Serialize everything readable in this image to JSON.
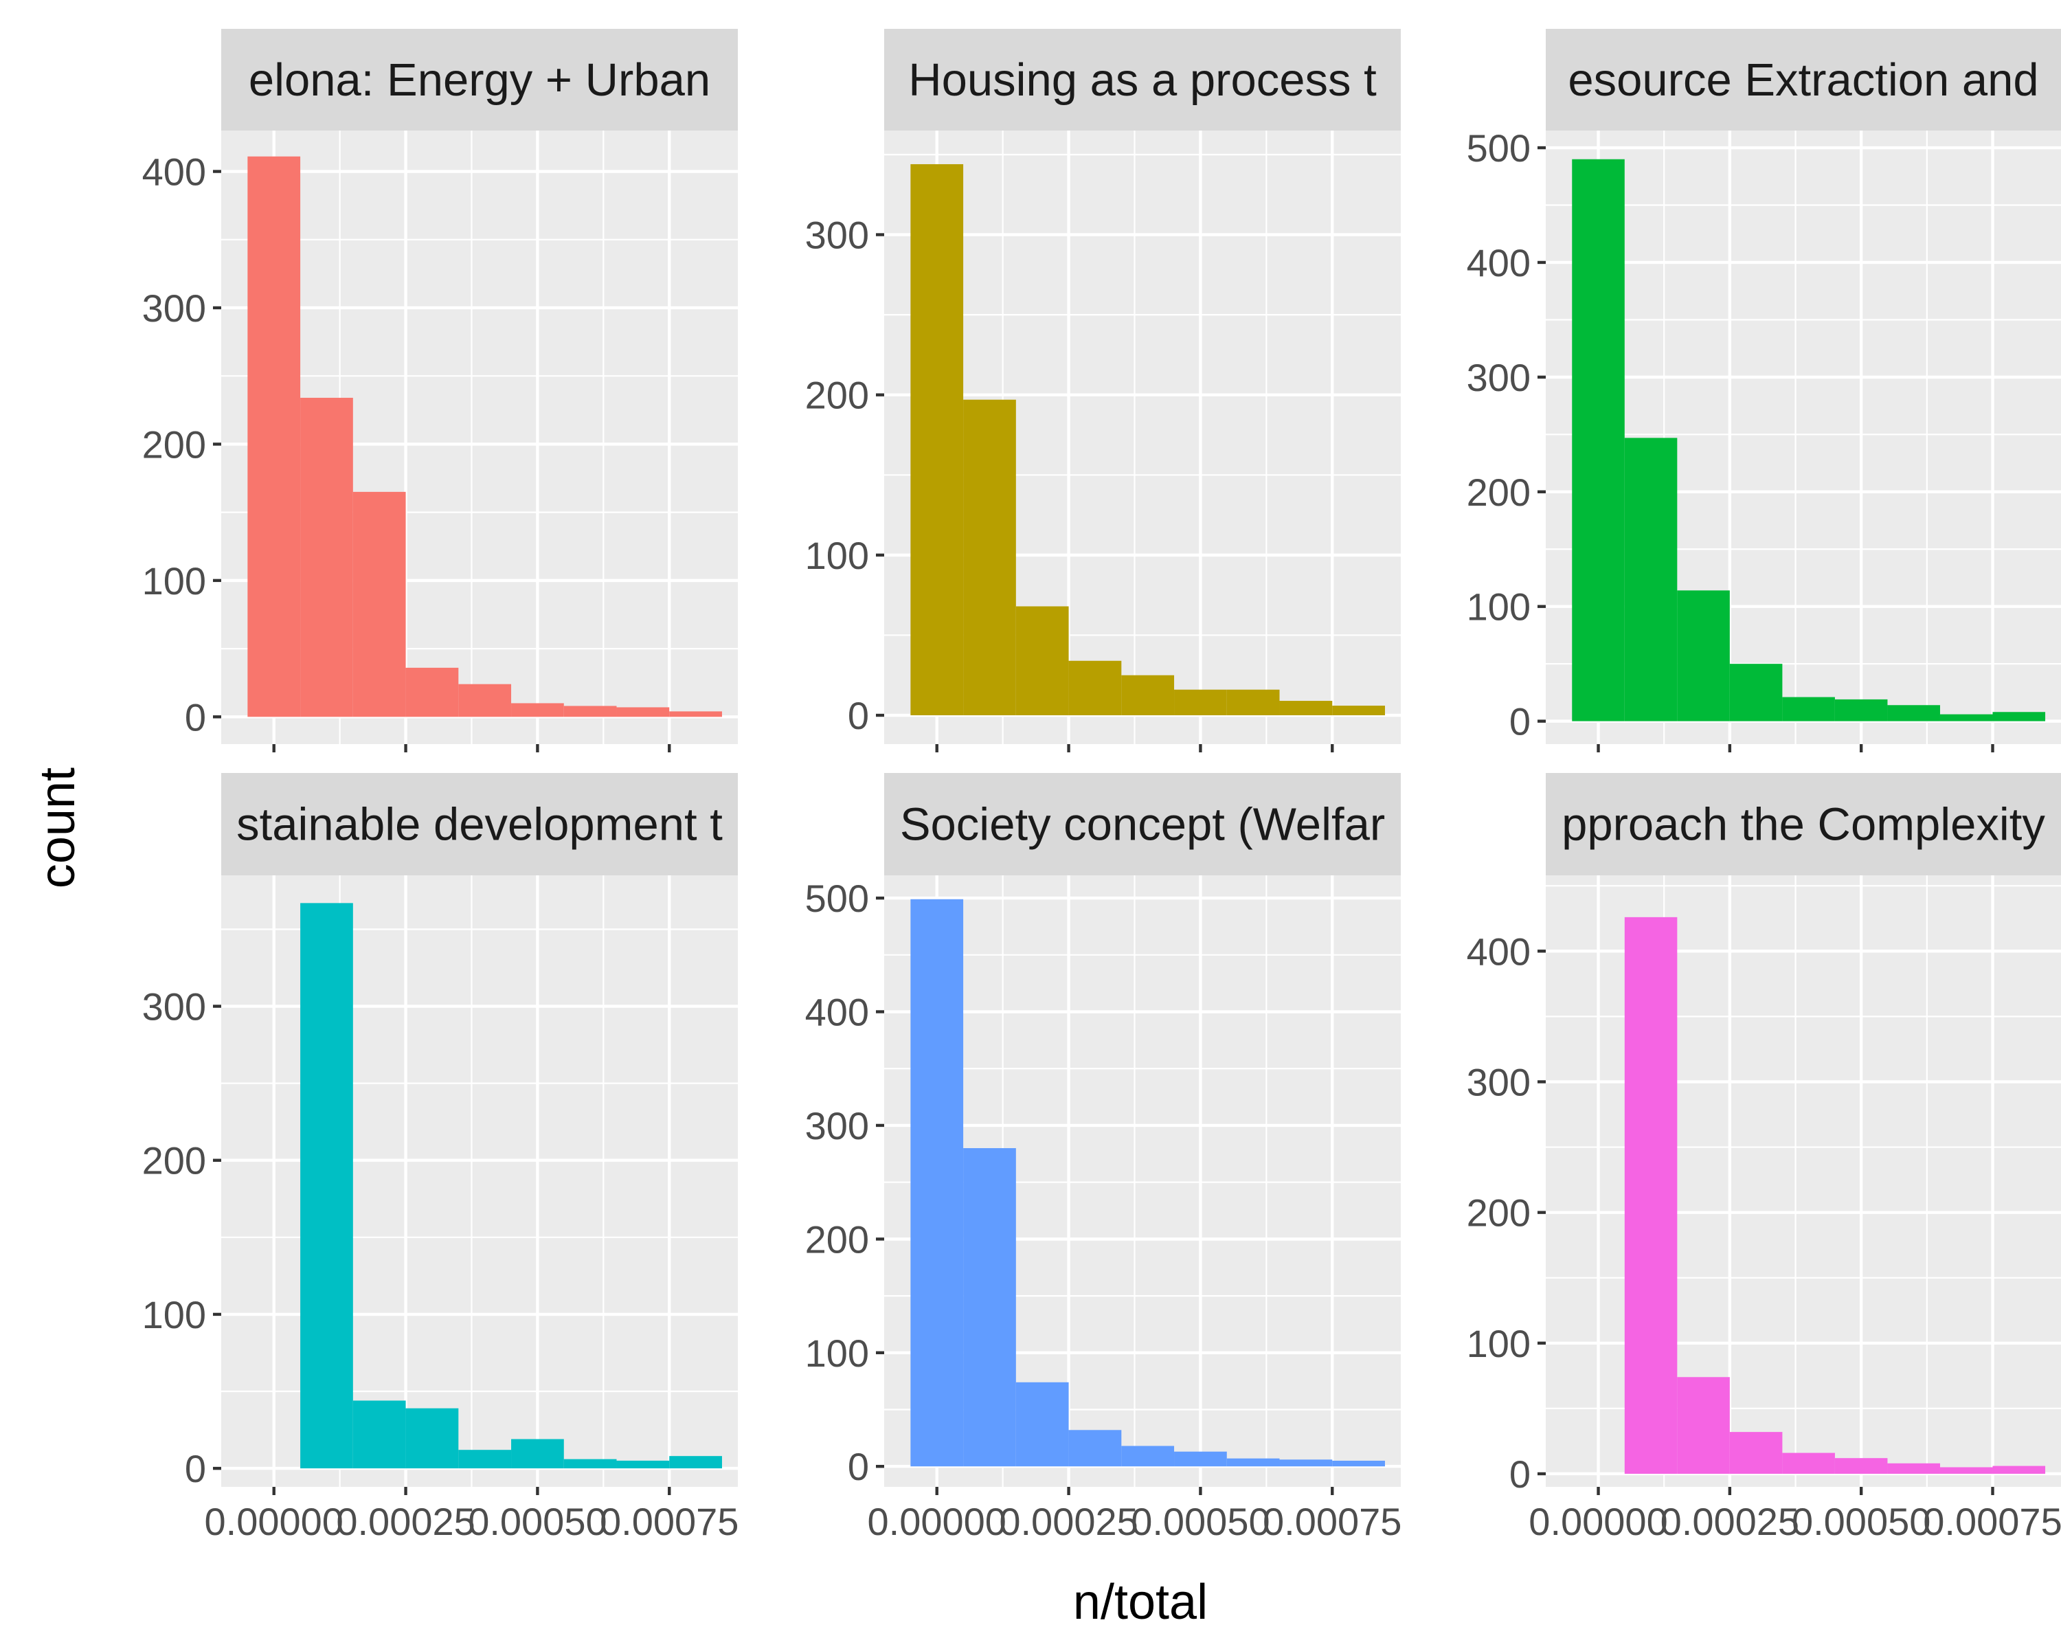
{
  "chart_data": {
    "type": "bar",
    "xlabel": "n/total",
    "ylabel": "count",
    "xlim": [
      -0.0001,
      0.00088
    ],
    "xticks": [
      0.0,
      0.00025,
      0.0005,
      0.00075
    ],
    "xtick_labels": [
      "0.00000",
      "0.00025",
      "0.00050",
      "0.00075"
    ],
    "bin_width": 0.0001,
    "bin_starts": [
      -5e-05,
      5e-05,
      0.00015,
      0.00025,
      0.00035,
      0.00045,
      0.00055,
      0.00065,
      0.00075
    ],
    "grid": true,
    "legend": false,
    "layout": "facet 2x3",
    "panels": [
      {
        "strip": "elona: Energy + Urban",
        "color": "#F8766D",
        "ylim": [
          -20,
          430
        ],
        "yticks": [
          0,
          100,
          200,
          300,
          400
        ],
        "counts": [
          411,
          234,
          165,
          36,
          24,
          10,
          8,
          7,
          4
        ]
      },
      {
        "strip": "Housing as a process t",
        "color": "#B79F00",
        "ylim": [
          -18,
          365
        ],
        "yticks": [
          0,
          100,
          200,
          300
        ],
        "counts": [
          344,
          197,
          68,
          34,
          25,
          16,
          16,
          9,
          6
        ]
      },
      {
        "strip": "esource Extraction and",
        "color": "#00BA38",
        "ylim": [
          -20,
          515
        ],
        "yticks": [
          0,
          100,
          200,
          300,
          400,
          500
        ],
        "counts": [
          490,
          247,
          114,
          50,
          21,
          19,
          14,
          6,
          8
        ]
      },
      {
        "strip": "stainable development t",
        "color": "#00BFC4",
        "ylim": [
          -12,
          385
        ],
        "yticks": [
          0,
          100,
          200,
          300
        ],
        "counts": [
          0,
          367,
          44,
          39,
          12,
          19,
          6,
          5,
          8
        ]
      },
      {
        "strip": "Society concept (Welfar",
        "color": "#619CFF",
        "ylim": [
          -18,
          520
        ],
        "yticks": [
          0,
          100,
          200,
          300,
          400,
          500
        ],
        "counts": [
          499,
          280,
          74,
          32,
          18,
          13,
          7,
          6,
          5
        ]
      },
      {
        "strip": "pproach the Complexity",
        "color": "#F564E3",
        "ylim": [
          -10,
          458
        ],
        "yticks": [
          0,
          100,
          200,
          300,
          400
        ],
        "counts": [
          0,
          426,
          74,
          32,
          16,
          12,
          8,
          5,
          6
        ]
      }
    ]
  }
}
